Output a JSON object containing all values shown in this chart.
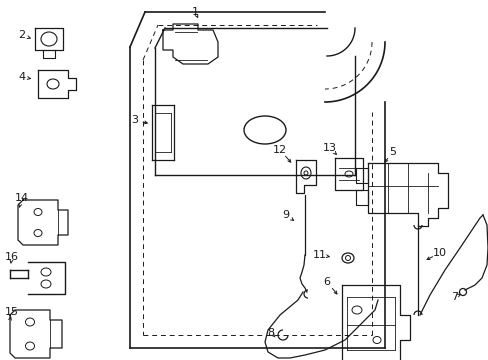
{
  "background_color": "#ffffff",
  "line_color": "#1a1a1a",
  "text_color": "#1a1a1a",
  "fig_width": 4.89,
  "fig_height": 3.6,
  "dpi": 100
}
